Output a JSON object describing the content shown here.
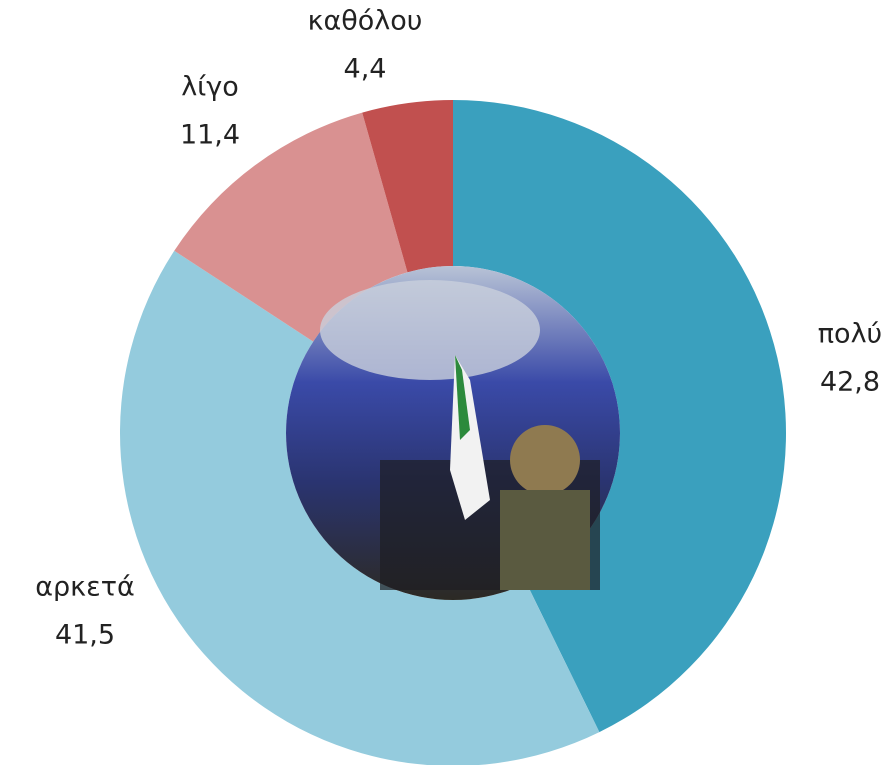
{
  "chart_data": {
    "type": "donut",
    "categories": [
      "πολύ",
      "αρκετά",
      "λίγο",
      "καθόλου"
    ],
    "values": [
      42.8,
      41.5,
      11.4,
      4.4
    ],
    "value_labels": [
      "42,8",
      "41,5",
      "11,4",
      "4,4"
    ],
    "colors": [
      "#3aa0be",
      "#94cbdd",
      "#d99191",
      "#c1504f"
    ]
  }
}
